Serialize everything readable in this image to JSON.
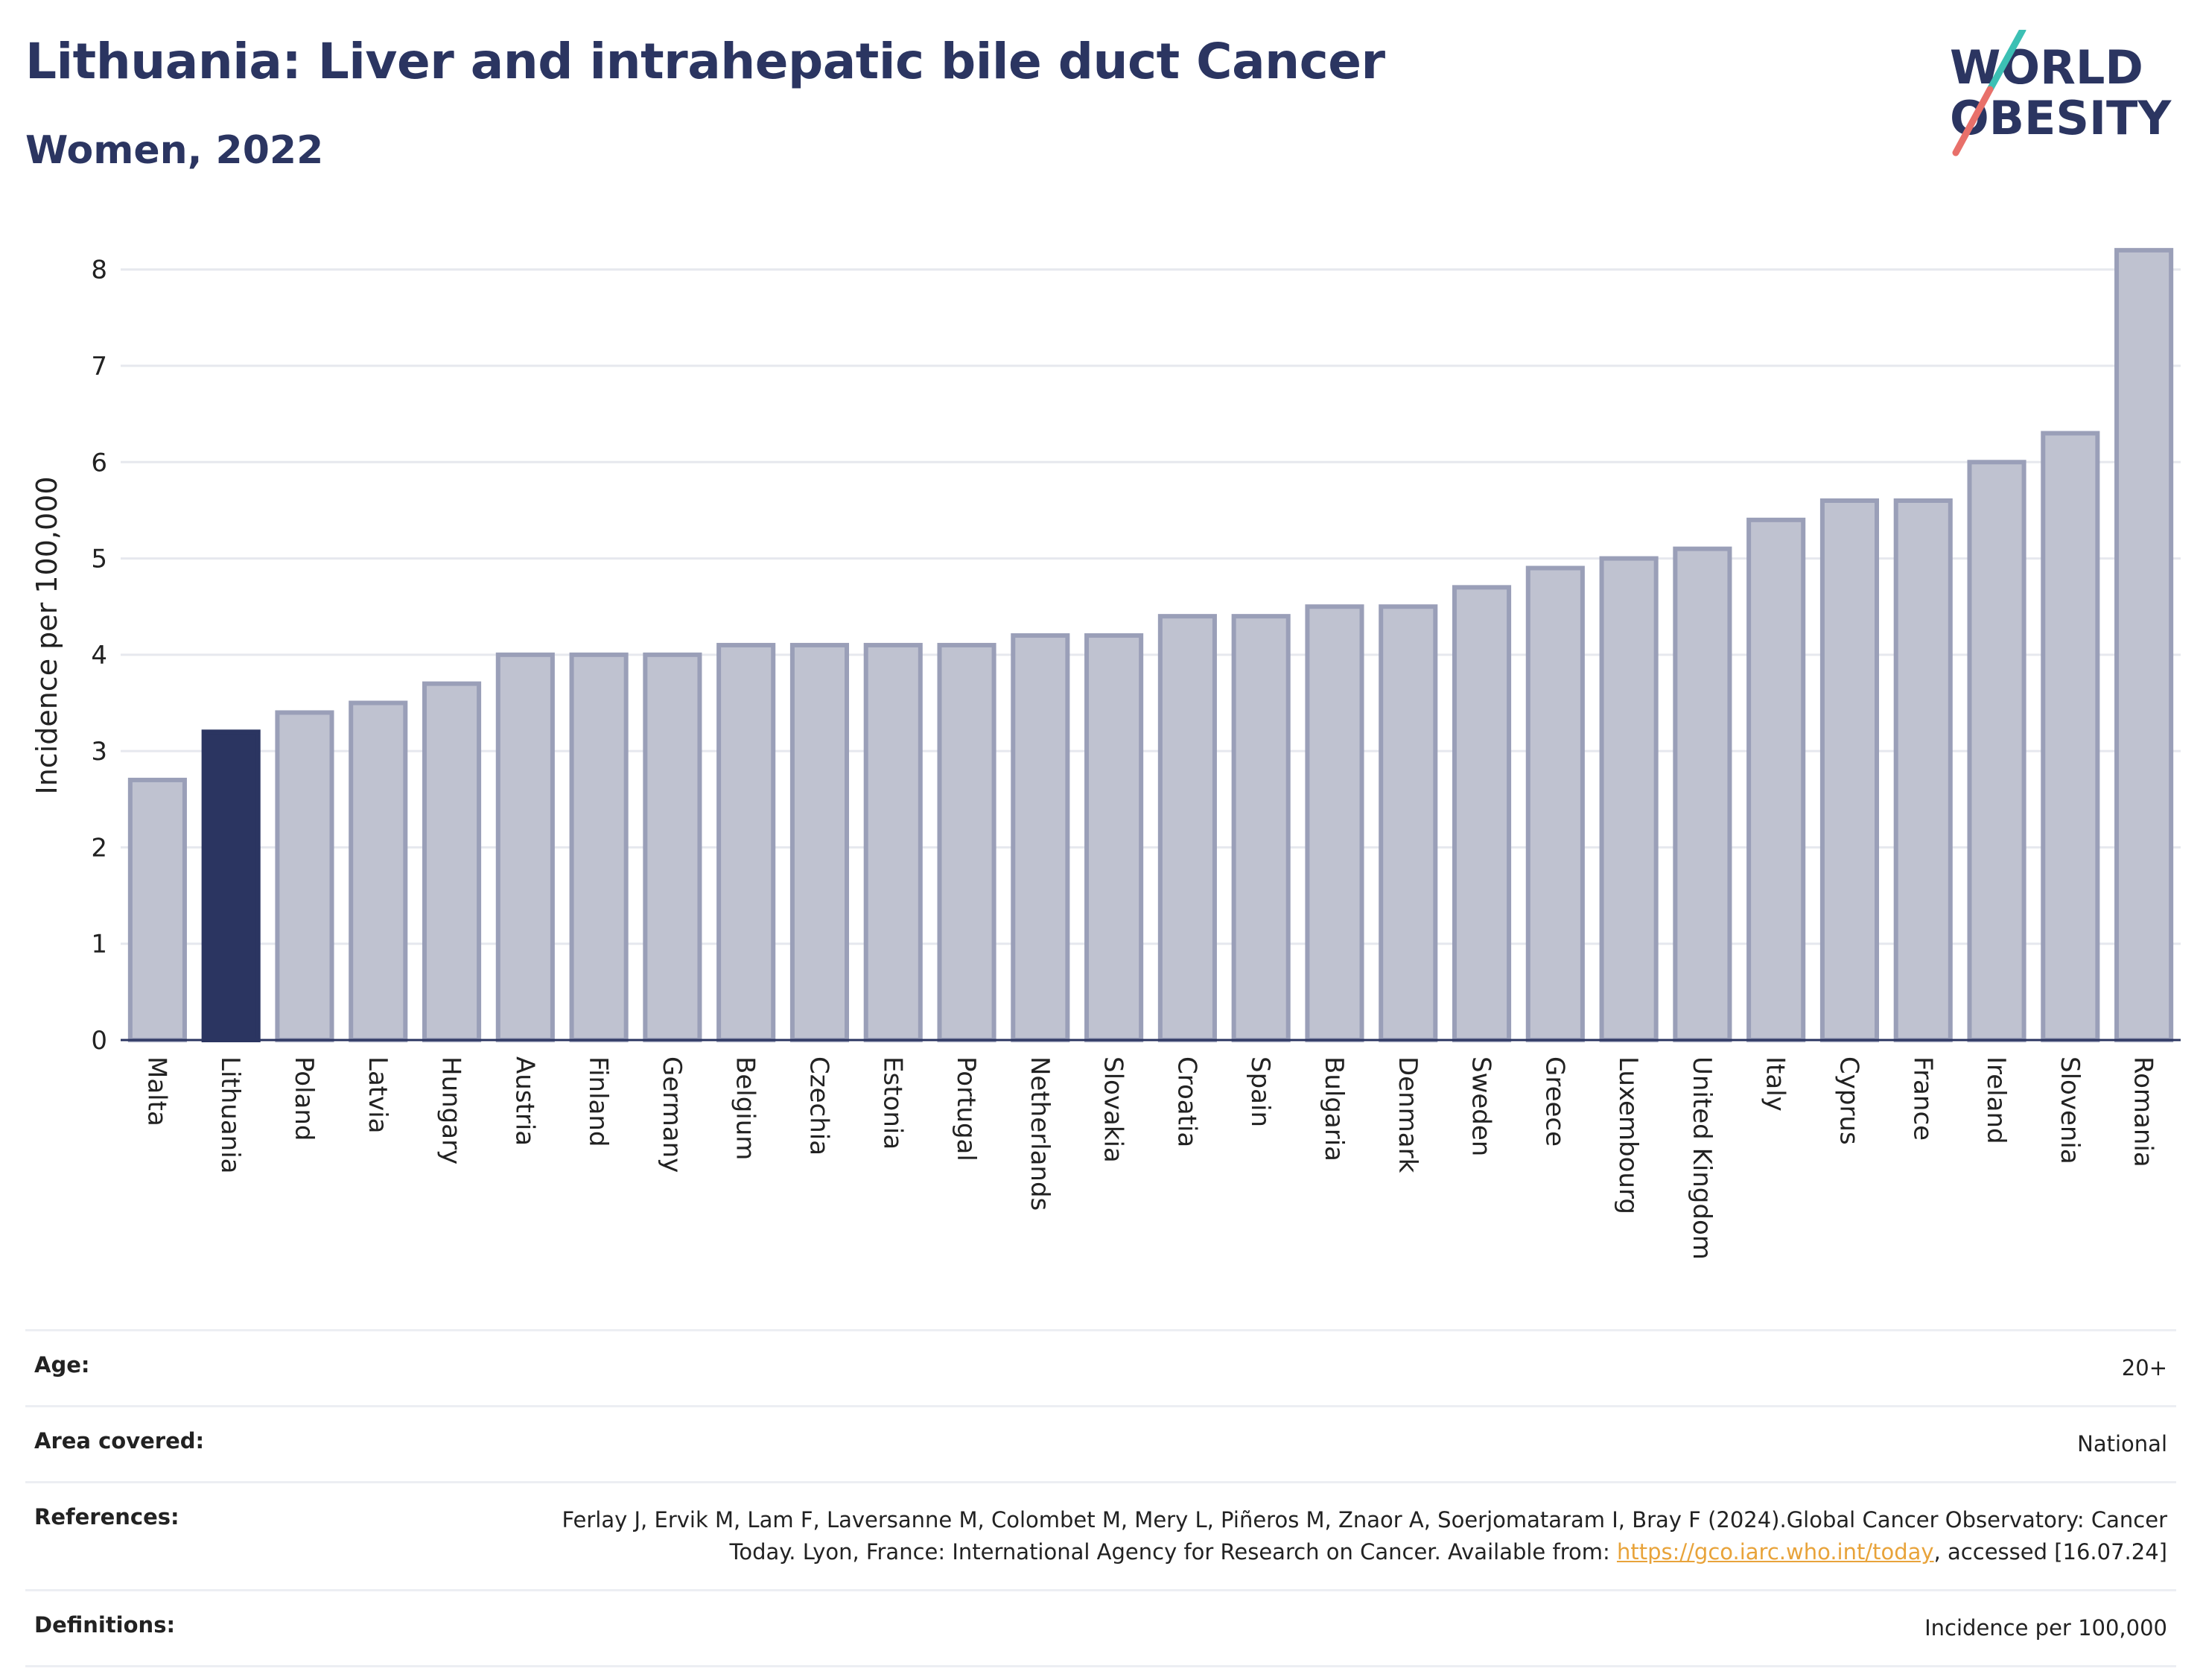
{
  "header": {
    "title": "Lithuania: Liver and intrahepatic bile duct Cancer",
    "subtitle": "Women, 2022"
  },
  "logo": {
    "line1": "WORLD",
    "line2": "OBESITY",
    "colors": {
      "text": "#2b3561",
      "slash_top": "#3cc0b4",
      "slash_bottom": "#e8706a"
    }
  },
  "chart_data": {
    "type": "bar",
    "title": "Lithuania: Liver and intrahepatic bile duct Cancer",
    "subtitle": "Women, 2022",
    "ylabel": "Incidence per 100,000",
    "xlabel": "",
    "ylim": [
      0,
      8.4
    ],
    "yticks": [
      0,
      1,
      2,
      3,
      4,
      5,
      6,
      7,
      8
    ],
    "grid": true,
    "highlight": "Lithuania",
    "colors": {
      "bar": "#bfc2d0",
      "bar_edge": "#9a9fb8",
      "highlight": "#2b3561",
      "grid": "#e6e8ee",
      "axis": "#2b3561"
    },
    "categories": [
      "Malta",
      "Lithuania",
      "Poland",
      "Latvia",
      "Hungary",
      "Austria",
      "Finland",
      "Germany",
      "Belgium",
      "Czechia",
      "Estonia",
      "Portugal",
      "Netherlands",
      "Slovakia",
      "Croatia",
      "Spain",
      "Bulgaria",
      "Denmark",
      "Sweden",
      "Greece",
      "Luxembourg",
      "United Kingdom",
      "Italy",
      "Cyprus",
      "France",
      "Ireland",
      "Slovenia",
      "Romania"
    ],
    "values": [
      2.7,
      3.2,
      3.4,
      3.5,
      3.7,
      4.0,
      4.0,
      4.0,
      4.1,
      4.1,
      4.1,
      4.1,
      4.2,
      4.2,
      4.4,
      4.4,
      4.5,
      4.5,
      4.7,
      4.9,
      5.0,
      5.1,
      5.4,
      5.6,
      5.6,
      6.0,
      6.3,
      8.2
    ]
  },
  "meta": {
    "age_label": "Age:",
    "age_value": "20+",
    "area_label": "Area covered:",
    "area_value": "National",
    "references_label": "References:",
    "references_text_1": "Ferlay J, Ervik M, Lam F, Laversanne M, Colombet M, Mery L, Piñeros M, Znaor A, Soerjomataram I, Bray F (2024).Global Cancer Observatory: Cancer Today. Lyon, France: International Agency for Research on Cancer. Available from: ",
    "references_link": "https://gco.iarc.who.int/today",
    "references_text_2": ", accessed [16.07.24]",
    "definitions_label": "Definitions:",
    "definitions_value": "Incidence per 100,000"
  }
}
